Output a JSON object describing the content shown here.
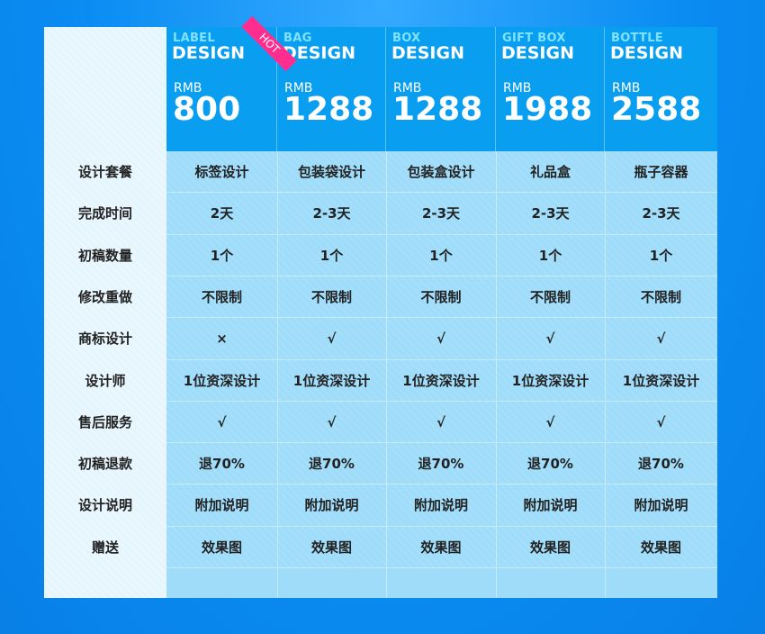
{
  "plans": [
    {
      "type_en": "LABEL",
      "design_word": "DESIGN",
      "currency": "RMB",
      "price": "800",
      "hot_badge": "HOT"
    },
    {
      "type_en": "BAG",
      "design_word": "DESIGN",
      "currency": "RMB",
      "price": "1288"
    },
    {
      "type_en": "BOX",
      "design_word": "DESIGN",
      "currency": "RMB",
      "price": "1288"
    },
    {
      "type_en": "GIFT BOX",
      "design_word": "DESIGN",
      "currency": "RMB",
      "price": "1988"
    },
    {
      "type_en": "BOTTLE",
      "design_word": "DESIGN",
      "currency": "RMB",
      "price": "2588"
    }
  ],
  "rows": [
    {
      "label": "设计套餐",
      "values": [
        "标签设计",
        "包装袋设计",
        "包装盒设计",
        "礼品盒",
        "瓶子容器"
      ]
    },
    {
      "label": "完成时间",
      "values": [
        "2天",
        "2-3天",
        "2-3天",
        "2-3天",
        "2-3天"
      ]
    },
    {
      "label": "初稿数量",
      "values": [
        "1个",
        "1个",
        "1个",
        "1个",
        "1个"
      ]
    },
    {
      "label": "修改重做",
      "values": [
        "不限制",
        "不限制",
        "不限制",
        "不限制",
        "不限制"
      ]
    },
    {
      "label": "商标设计",
      "values": [
        "×",
        "√",
        "√",
        "√",
        "√"
      ]
    },
    {
      "label": "设计师",
      "values": [
        "1位资深设计",
        "1位资深设计",
        "1位资深设计",
        "1位资深设计",
        "1位资深设计"
      ]
    },
    {
      "label": "售后服务",
      "values": [
        "√",
        "√",
        "√",
        "√",
        "√"
      ]
    },
    {
      "label": "初稿退款",
      "values": [
        "退70%",
        "退70%",
        "退70%",
        "退70%",
        "退70%"
      ]
    },
    {
      "label": "设计说明",
      "values": [
        "附加说明",
        "附加说明",
        "附加说明",
        "附加说明",
        "附加说明"
      ]
    },
    {
      "label": "赠送",
      "values": [
        "效果图",
        "效果图",
        "效果图",
        "效果图",
        "效果图"
      ]
    }
  ],
  "colors": {
    "page_background": "#0a8cf2",
    "header_background": "#0a9ef0",
    "body_background": "#9fdcfa",
    "label_column_background": "#e4f5fd",
    "hot_badge": "#ff2d8e",
    "type_text": "#7fe3ff"
  }
}
